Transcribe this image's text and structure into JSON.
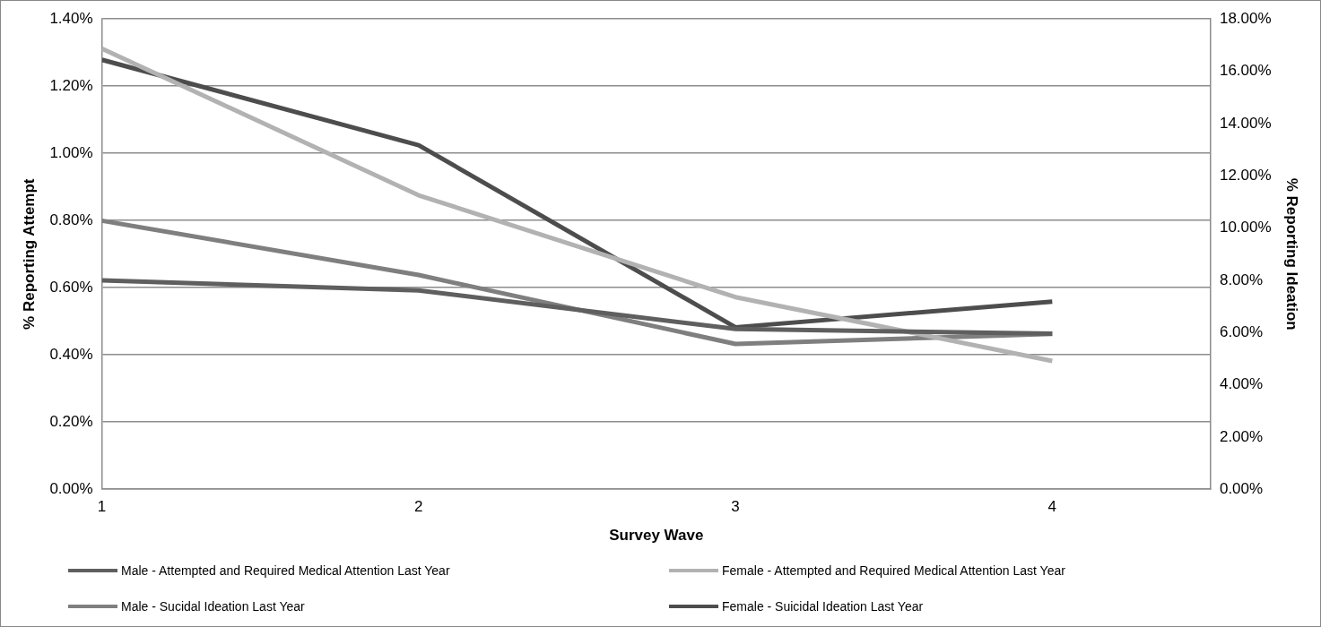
{
  "chart_data": {
    "type": "line",
    "xlabel": "Survey Wave",
    "ylabel": "% Reporting Attempt",
    "y2label": "% Reporting Ideation",
    "x": [
      1,
      2,
      3,
      4
    ],
    "xlim": [
      1,
      4.5
    ],
    "xticks": [
      1,
      2,
      3,
      4
    ],
    "ylim": [
      0,
      1.4
    ],
    "yticks": [
      {
        "value": 0,
        "label": "0.00%"
      },
      {
        "value": 0.2,
        "label": "0.20%"
      },
      {
        "value": 0.4,
        "label": "0.40%"
      },
      {
        "value": 0.6,
        "label": "0.60%"
      },
      {
        "value": 0.8,
        "label": "0.80%"
      },
      {
        "value": 1.0,
        "label": "1.00%"
      },
      {
        "value": 1.2,
        "label": "1.20%"
      },
      {
        "value": 1.4,
        "label": "1.40%"
      }
    ],
    "y2lim": [
      0,
      18
    ],
    "y2ticks": [
      {
        "value": 0,
        "label": "0.00%"
      },
      {
        "value": 2,
        "label": "2.00%"
      },
      {
        "value": 4,
        "label": "4.00%"
      },
      {
        "value": 6,
        "label": "6.00%"
      },
      {
        "value": 8,
        "label": "8.00%"
      },
      {
        "value": 10,
        "label": "10.00%"
      },
      {
        "value": 12,
        "label": "12.00%"
      },
      {
        "value": 14,
        "label": "14.00%"
      },
      {
        "value": 16,
        "label": "16.00%"
      },
      {
        "value": 18,
        "label": "18.00%"
      }
    ],
    "series": [
      {
        "name": "Male - Attempted and Required Medical Attention Last Year",
        "color": "#5f5f5f",
        "values": [
          0.622,
          0.592,
          0.477,
          0.463
        ]
      },
      {
        "name": "Female - Attempted and Required Medical Attention Last Year",
        "color": "#b2b2b2",
        "values": [
          1.312,
          0.875,
          0.572,
          0.382
        ]
      },
      {
        "name": "Male - Sucidal Ideation Last Year",
        "color": "#7f7f7f",
        "axis": "y2",
        "values": [
          10.28,
          8.2,
          5.56,
          5.95
        ]
      },
      {
        "name": "Female - Suicidal Ideation Last Year",
        "color": "#4d4d4d",
        "axis": "y2",
        "values": [
          16.44,
          13.17,
          6.2,
          7.18
        ]
      }
    ],
    "grid": "y",
    "legend": "bottom",
    "marker": "none",
    "line_style": "solid"
  }
}
